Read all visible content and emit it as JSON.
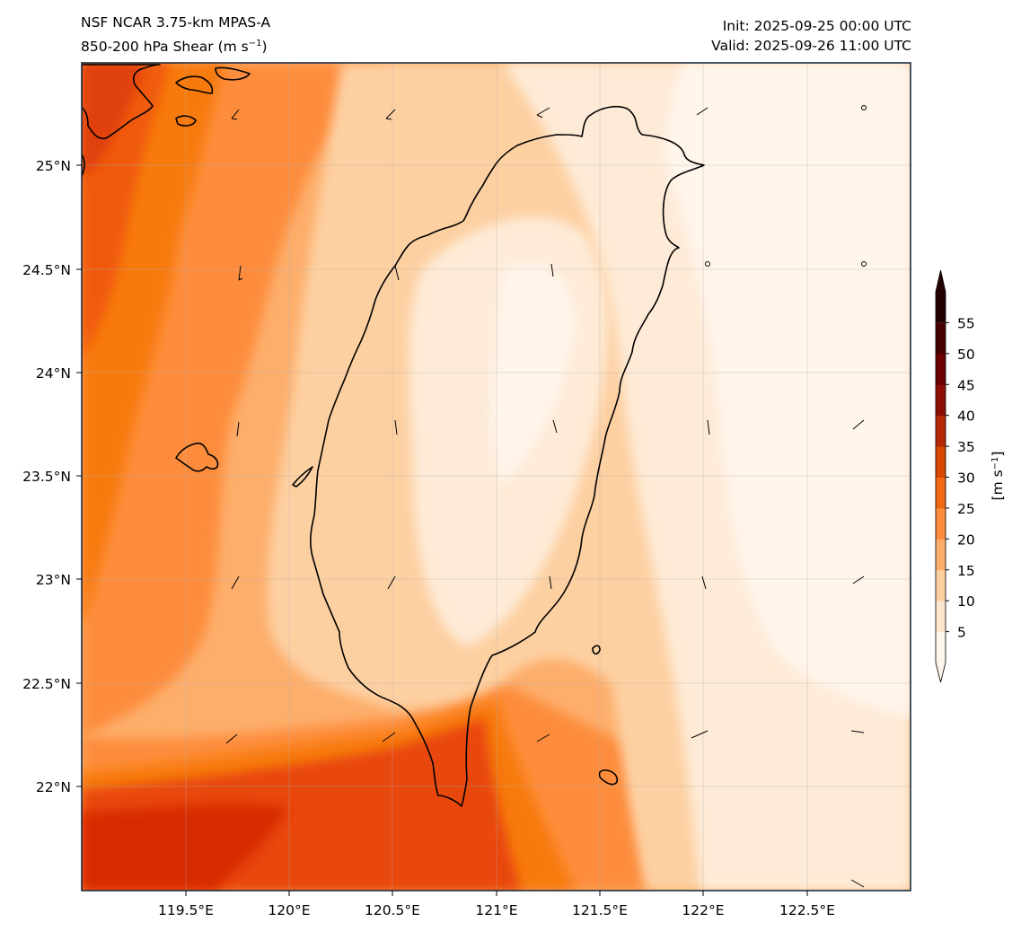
{
  "header": {
    "model": "NSF NCAR 3.75-km MPAS-A",
    "field_prefix": "850-200 hPa Shear (m s",
    "field_exp": "−1",
    "field_suffix": ")",
    "init": "Init: 2025-09-25 00:00 UTC",
    "valid": "Valid: 2025-09-26 11:00 UTC"
  },
  "axes": {
    "lon_ticks": [
      "119.5°E",
      "120°E",
      "120.5°E",
      "121°E",
      "121.5°E",
      "122°E",
      "122.5°E"
    ],
    "lat_ticks": [
      "25°N",
      "24.5°N",
      "24°N",
      "23.5°N",
      "23°N",
      "22.5°N",
      "22°N"
    ]
  },
  "colorbar": {
    "levels": [
      "5",
      "10",
      "15",
      "20",
      "25",
      "30",
      "35",
      "40",
      "45",
      "50",
      "55"
    ],
    "unit_prefix": "[m s",
    "unit_exp": "−1",
    "unit_suffix": "]",
    "colors": [
      "#fff5eb",
      "#fee6ce",
      "#fdd0a2",
      "#fdae6b",
      "#fd8d3c",
      "#f16913",
      "#d94801",
      "#b52a04",
      "#8c0d04",
      "#6b0000",
      "#470000",
      "#230000"
    ]
  },
  "map": {
    "region": "Taiwan",
    "shading_colors": {
      "lt5": "#fff5eb",
      "5_10": "#feebd7",
      "10_15": "#fdd0a2",
      "15_20": "#fdae6b",
      "20_25": "#fd8d3c",
      "25_30": "#f77a10",
      "30_35": "#e8460a",
      "35_40": "#d82a02"
    }
  }
}
